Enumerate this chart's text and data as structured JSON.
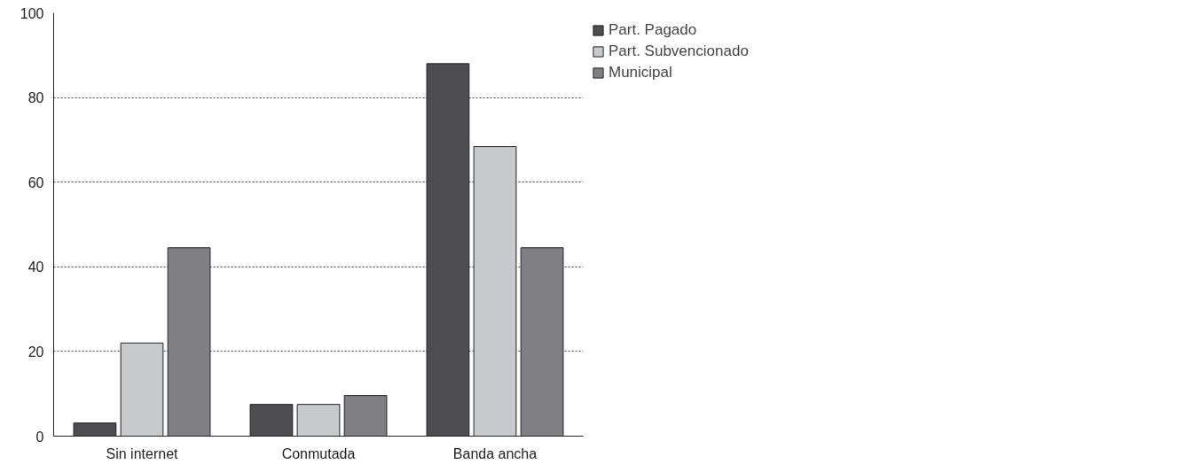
{
  "chart_data": {
    "type": "bar",
    "categories": [
      "Sin internet",
      "Conmutada",
      "Banda ancha"
    ],
    "series": [
      {
        "name": "Part. Pagado",
        "color": "#4d4d4f",
        "values": [
          3.1,
          7.5,
          88
        ]
      },
      {
        "name": "Part. Subvencionado",
        "color": "#c8c9cb",
        "values": [
          22,
          7.5,
          68.4
        ]
      },
      {
        "name": "Municipal",
        "color": "#808084",
        "values": [
          44.5,
          9.6,
          44.5
        ]
      }
    ],
    "ylim": [
      0,
      100
    ],
    "yticks": [
      0,
      20,
      40,
      60,
      80,
      100
    ],
    "grid": "y",
    "legend": "top right"
  }
}
